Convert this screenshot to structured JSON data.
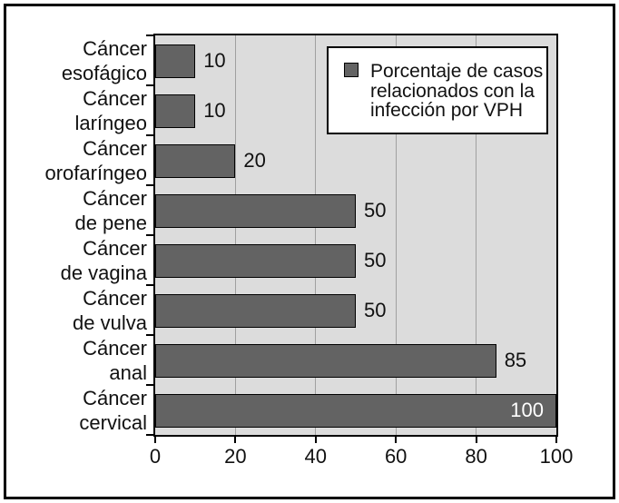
{
  "figure": {
    "background": "#ffffff",
    "frame_color": "#000000"
  },
  "chart_data": {
    "type": "bar",
    "orientation": "horizontal",
    "title": "",
    "categories": [
      "Cáncer esofágico",
      "Cáncer laríngeo",
      "Cáncer orofaríngeo",
      "Cáncer de pene",
      "Cáncer de vagina",
      "Cáncer de vulva",
      "Cáncer anal",
      "Cáncer cervical"
    ],
    "category_lines": [
      [
        "Cáncer",
        "esofágico"
      ],
      [
        "Cáncer",
        "laríngeo"
      ],
      [
        "Cáncer",
        "orofaríngeo"
      ],
      [
        "Cáncer",
        "de pene"
      ],
      [
        "Cáncer",
        "de vagina"
      ],
      [
        "Cáncer",
        "de vulva"
      ],
      [
        "Cáncer",
        "anal"
      ],
      [
        "Cáncer",
        "cervical"
      ]
    ],
    "values": [
      10,
      10,
      20,
      50,
      50,
      50,
      85,
      100
    ],
    "value_labels": [
      "10",
      "10",
      "20",
      "50",
      "50",
      "50",
      "85",
      "100"
    ],
    "xlim": [
      0,
      100
    ],
    "xticks": [
      0,
      20,
      40,
      60,
      80,
      100
    ],
    "grid": true,
    "gridline_values": [
      20,
      40,
      60,
      80
    ],
    "legend": {
      "position": "top-right",
      "label": "Porcentaje de casos relacionados con la infección por VPH",
      "lines": [
        "Porcentaje de casos",
        "relacionados con la",
        "infección por VPH"
      ]
    },
    "colors": {
      "bar": "#636363",
      "bar_border": "#000000",
      "plot_bg": "#dcdcdc",
      "gridline": "#a0a0a0",
      "text": "#111111",
      "value_label_inside": "#ffffff"
    }
  }
}
